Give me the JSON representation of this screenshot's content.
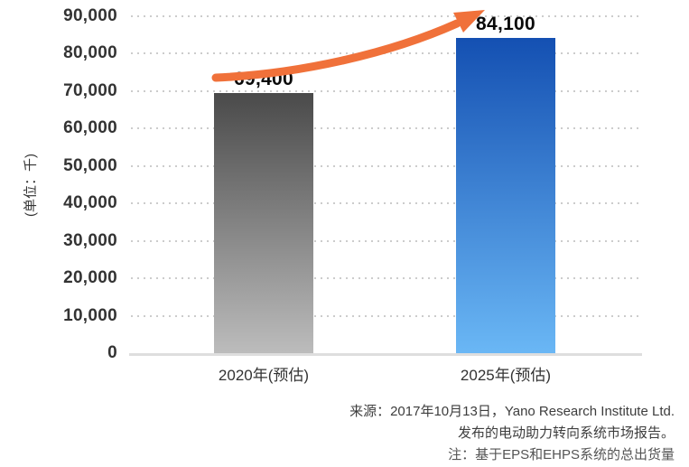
{
  "chart_data": {
    "type": "bar",
    "title": "",
    "categories": [
      "2020年(预估)",
      "2025年(预估)"
    ],
    "values": [
      69400,
      84100
    ],
    "value_labels": [
      "69,400",
      "84,100"
    ],
    "ylabel": "(单位：千)",
    "ylim": [
      0,
      90000
    ],
    "ytick_step": 10000,
    "yticks": [
      {
        "v": 90000,
        "label": "90,000"
      },
      {
        "v": 80000,
        "label": "80,000"
      },
      {
        "v": 70000,
        "label": "70,000"
      },
      {
        "v": 60000,
        "label": "60,000"
      },
      {
        "v": 50000,
        "label": "50,000"
      },
      {
        "v": 40000,
        "label": "40,000"
      },
      {
        "v": 30000,
        "label": "30,000"
      },
      {
        "v": 20000,
        "label": "20,000"
      },
      {
        "v": 10000,
        "label": "10,000"
      },
      {
        "v": 0,
        "label": "0"
      }
    ],
    "grid": "horizontal-dotted",
    "legend": "none",
    "bars": [
      {
        "category": "2020年(预估)",
        "value": 69400,
        "label": "69,400",
        "gradient_top": "#4a4a4a",
        "gradient_bottom": "#bcbcbc"
      },
      {
        "category": "2025年(预估)",
        "value": 84100,
        "label": "84,100",
        "gradient_top": "#1450b2",
        "gradient_bottom": "#6ab7f5"
      }
    ],
    "annotations": [
      {
        "type": "arrow",
        "description": "curved growth arrow from 2020 bar up to 2025 bar",
        "color": "#F0713A"
      }
    ]
  },
  "footer": {
    "source_line1": "来源：2017年10月13日，Yano Research Institute Ltd.",
    "source_line2": "发布的电动助力转向系统市场报告。",
    "note_line": "注：基于EPS和EHPS系统的总出货量"
  },
  "colors": {
    "background": "#ffffff",
    "tick_text": "#333333",
    "value_label_text": "#0a0a0a",
    "grid_dot": "#cccccc",
    "axis_line": "#dedede",
    "arrow": "#F0713A",
    "footer_text": "#3d3d3d"
  }
}
